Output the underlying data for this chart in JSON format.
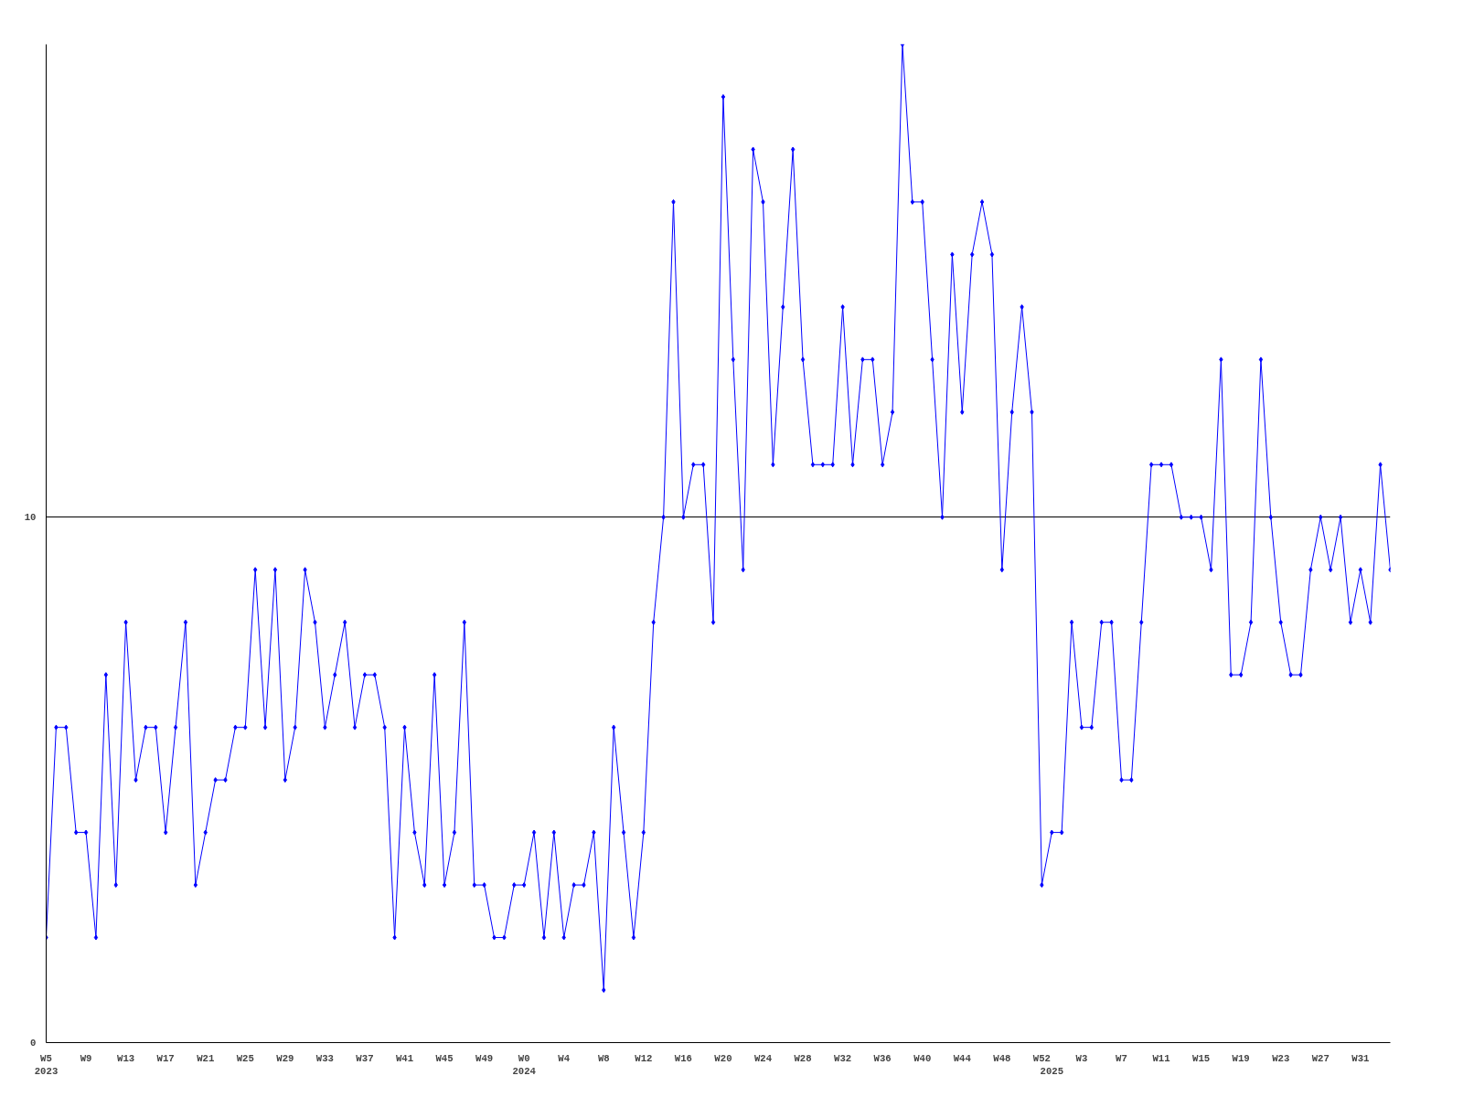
{
  "chart_data": {
    "type": "line",
    "categories": [
      "W5\n2023",
      null,
      null,
      null,
      "W9",
      null,
      null,
      null,
      "W13",
      null,
      null,
      null,
      "W17",
      null,
      null,
      null,
      "W21",
      null,
      null,
      null,
      "W25",
      null,
      null,
      null,
      "W29",
      null,
      null,
      null,
      "W33",
      null,
      null,
      null,
      "W37",
      null,
      null,
      null,
      "W41",
      null,
      null,
      null,
      "W45",
      null,
      null,
      null,
      "W49",
      null,
      null,
      null,
      "W0\n2024",
      null,
      null,
      null,
      "W4",
      null,
      null,
      null,
      "W8",
      null,
      null,
      null,
      "W12",
      null,
      null,
      null,
      "W16",
      null,
      null,
      null,
      "W20",
      null,
      null,
      null,
      "W24",
      null,
      null,
      null,
      "W28",
      null,
      null,
      null,
      "W32",
      null,
      null,
      null,
      "W36",
      null,
      null,
      null,
      "W40",
      null,
      null,
      null,
      "W44",
      null,
      null,
      null,
      "W48",
      null,
      null,
      null,
      "W52",
      "\n2025",
      null,
      null,
      "W3",
      null,
      null,
      null,
      "W7",
      null,
      null,
      null,
      "W11",
      null,
      null,
      null,
      "W15",
      null,
      null,
      null,
      "W19",
      null,
      null,
      null,
      "W23",
      null,
      null,
      null,
      "W27",
      null,
      null,
      null,
      "W31",
      null,
      null,
      null
    ],
    "series": [
      {
        "color": "#0000ff",
        "values": [
          2,
          6,
          6,
          4,
          4,
          2,
          7,
          3,
          8,
          5,
          6,
          6,
          4,
          6,
          8,
          3,
          4,
          5,
          5,
          6,
          6,
          9,
          6,
          9,
          5,
          6,
          9,
          8,
          6,
          7,
          8,
          6,
          7,
          7,
          6,
          2,
          6,
          4,
          3,
          7,
          3,
          4,
          8,
          3,
          3,
          2,
          2,
          3,
          3,
          4,
          2,
          4,
          2,
          3,
          3,
          4,
          1,
          6,
          4,
          2,
          4,
          8,
          10,
          16,
          10,
          11,
          11,
          8,
          18,
          13,
          9,
          17,
          16,
          11,
          14,
          17,
          13,
          11,
          11,
          11,
          14,
          11,
          13,
          13,
          11,
          12,
          19,
          16,
          16,
          13,
          10,
          15,
          12,
          15,
          16,
          15,
          9,
          12,
          14,
          12,
          3,
          4,
          4,
          8,
          6,
          6,
          8,
          8,
          5,
          5,
          8,
          11,
          11,
          11,
          10,
          10,
          10,
          9,
          13,
          7,
          7,
          8,
          13,
          10,
          8,
          7,
          7,
          9,
          10,
          9,
          10,
          8,
          9,
          8,
          11,
          9
        ]
      }
    ],
    "ylim": [
      0,
      19
    ],
    "yticks": [
      0,
      10
    ],
    "grid": "y",
    "marker": "diamond",
    "line_style": "solid"
  }
}
